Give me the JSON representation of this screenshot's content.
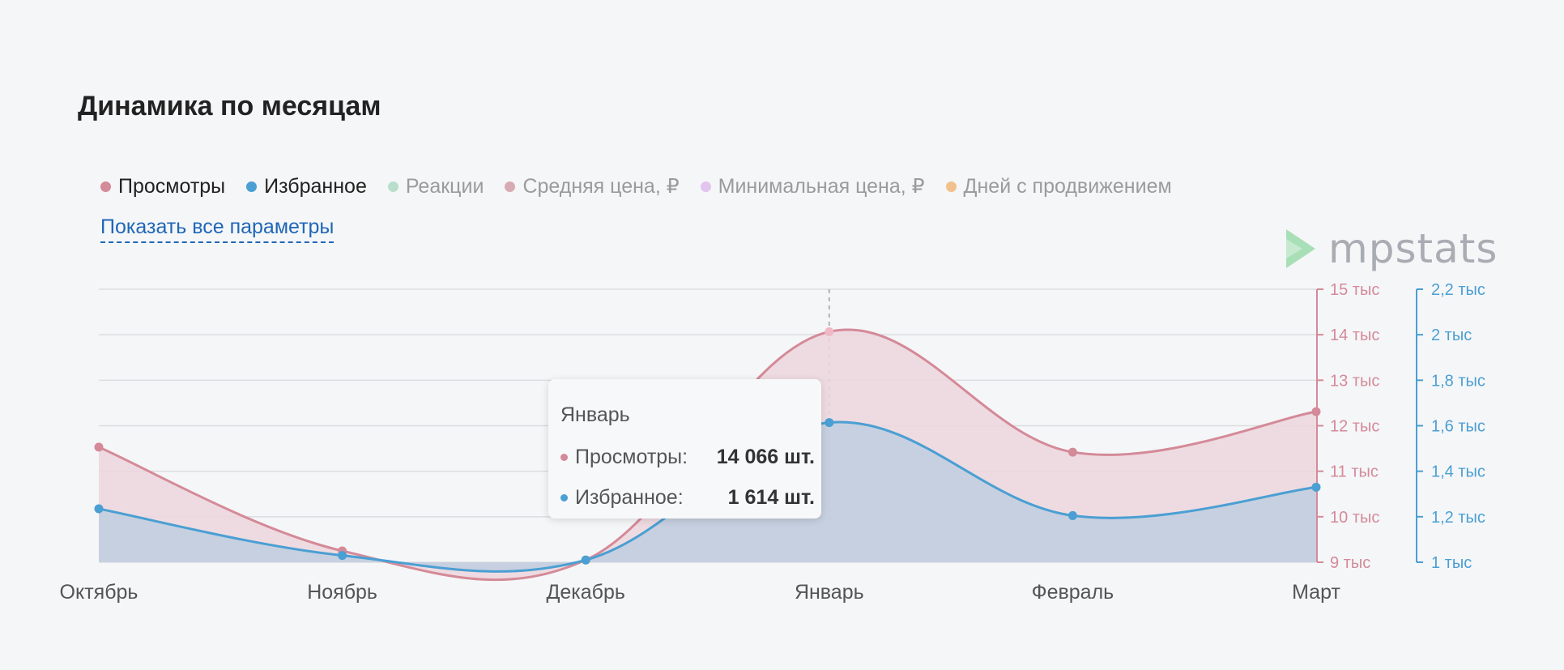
{
  "header": {
    "title": "Динамика по месяцам"
  },
  "legend": {
    "items": [
      {
        "label": "Просмотры",
        "color": "#d48a98",
        "active": true
      },
      {
        "label": "Избранное",
        "color": "#4a9fd3",
        "active": true
      },
      {
        "label": "Реакции",
        "color": "#b9dfcc",
        "active": false
      },
      {
        "label": "Средняя цена, ₽",
        "color": "#d8aab2",
        "active": false
      },
      {
        "label": "Минимальная цена, ₽",
        "color": "#e2c4ef",
        "active": false
      },
      {
        "label": "Дней с продвижением",
        "color": "#f2c08c",
        "active": false
      }
    ]
  },
  "show_all_link": "Показать все параметры",
  "logo": {
    "text": "mpstats",
    "icon": "play-triangle-icon",
    "color": "#a8dfb7"
  },
  "tooltip": {
    "title": "Январь",
    "rows": [
      {
        "label": "Просмотры:",
        "value": "14 066 шт.",
        "color": "#d48a98"
      },
      {
        "label": "Избранное:",
        "value": "1 614 шт.",
        "color": "#4a9fd3"
      }
    ]
  },
  "chart_data": {
    "type": "area",
    "categories": [
      "Октябрь",
      "Ноябрь",
      "Декабрь",
      "Январь",
      "Февраль",
      "Март"
    ],
    "series": [
      {
        "name": "Просмотры",
        "axis": "left",
        "color": "#d48a98",
        "fill": "#ecd6dd",
        "values": [
          11530,
          9250,
          9050,
          14066,
          11420,
          12310
        ]
      },
      {
        "name": "Избранное",
        "axis": "right",
        "color": "#4a9fd3",
        "fill": "#c0cedf",
        "values": [
          1235,
          1030,
          1010,
          1614,
          1205,
          1330
        ]
      }
    ],
    "y_left": {
      "min": 9000,
      "max": 15000,
      "ticks": [
        "9 тыс",
        "10 тыс",
        "11 тыс",
        "12 тыс",
        "13 тыс",
        "14 тыс",
        "15 тыс"
      ]
    },
    "y_right": {
      "min": 1000,
      "max": 2200,
      "ticks": [
        "1 тыс",
        "1,2 тыс",
        "1,4 тыс",
        "1,6 тыс",
        "1,8 тыс",
        "2 тыс",
        "2,2 тыс"
      ]
    },
    "grid": true,
    "highlighted_category": "Январь"
  }
}
